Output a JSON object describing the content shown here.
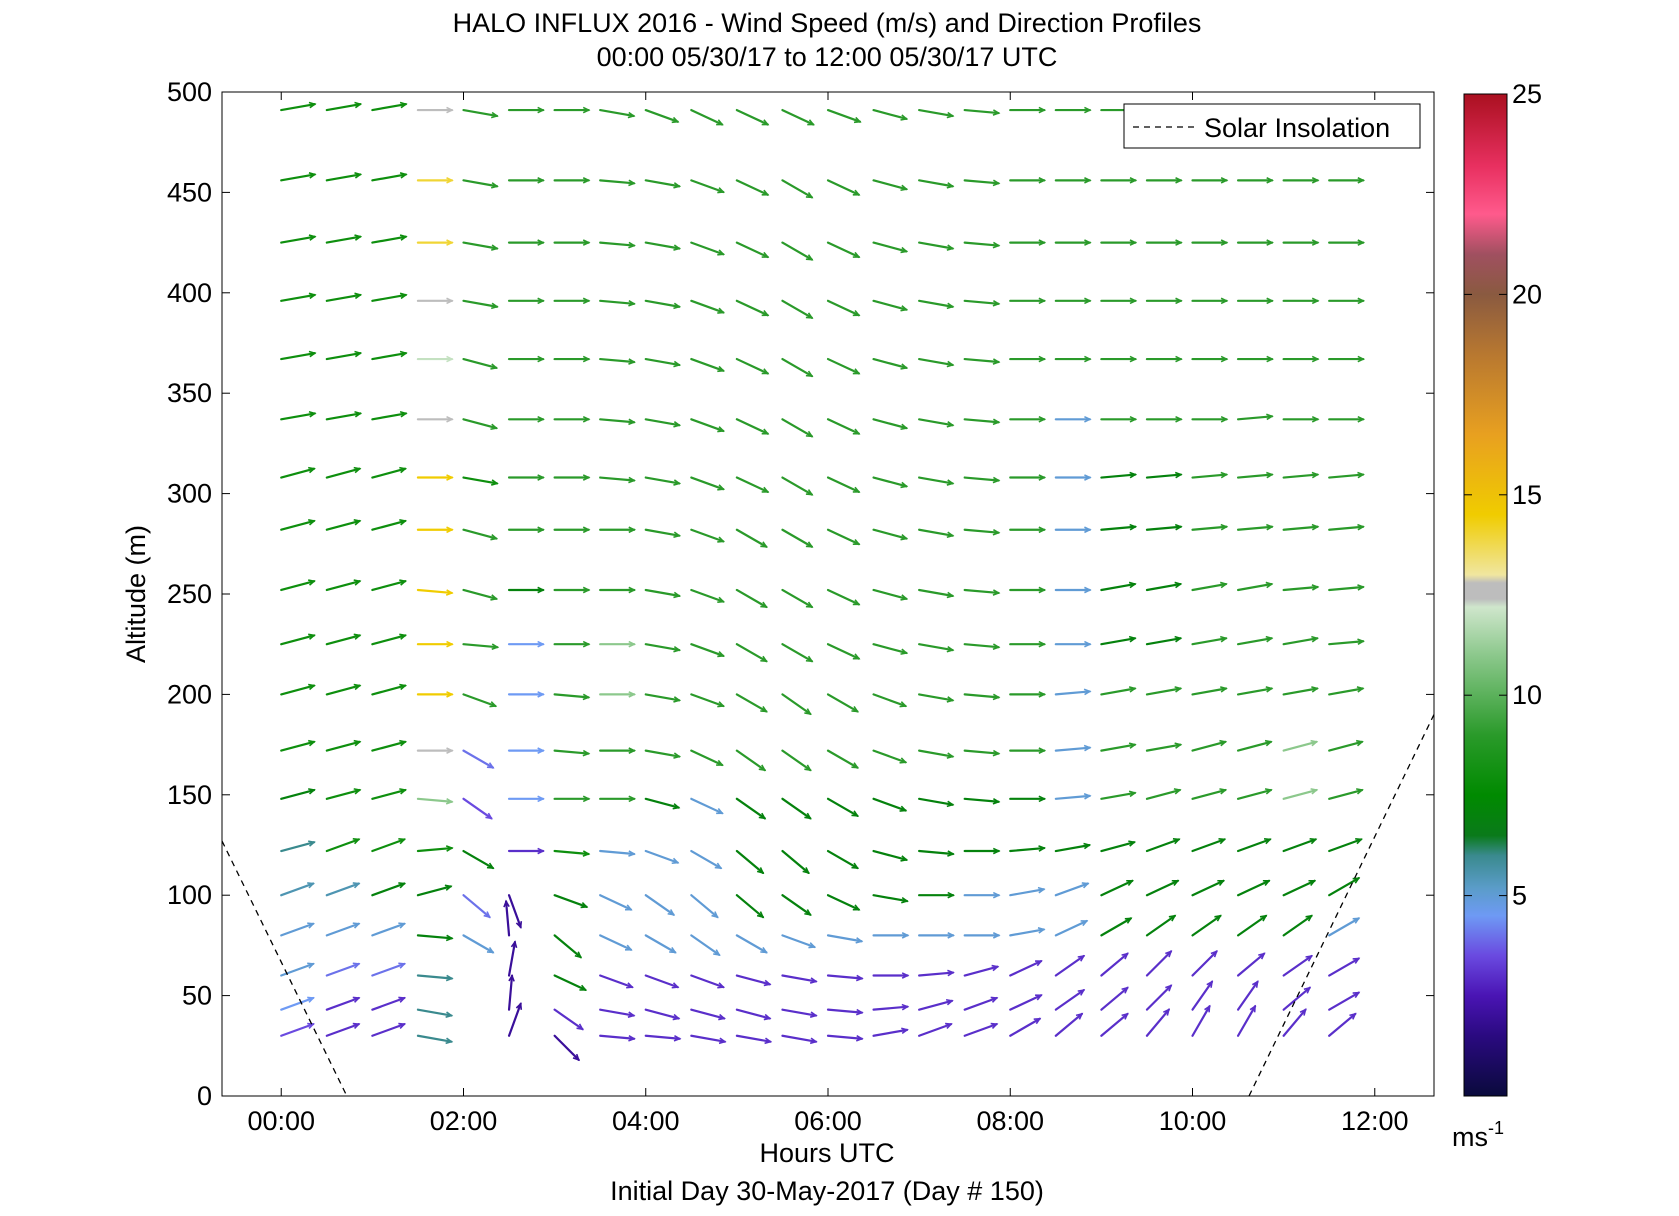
{
  "chart_data": {
    "type": "quiver",
    "title": "HALO INFLUX 2016 - Wind Speed (m/s) and Direction Profiles",
    "subtitle": "00:00 05/30/17 to 12:00 05/30/17  UTC",
    "xlabel": "Hours UTC",
    "footer": "Initial Day 30-May-2017 (Day # 150)",
    "ylabel": "Altitude (m)",
    "xlim": [
      -0.65,
      12.65
    ],
    "ylim": [
      0,
      500
    ],
    "x_ticks": [
      0,
      2,
      4,
      6,
      8,
      10,
      12
    ],
    "x_tick_labels": [
      "00:00",
      "02:00",
      "04:00",
      "06:00",
      "08:00",
      "10:00",
      "12:00"
    ],
    "y_ticks": [
      0,
      50,
      100,
      150,
      200,
      250,
      300,
      350,
      400,
      450,
      500
    ],
    "y_tick_labels": [
      "0",
      "50",
      "100",
      "150",
      "200",
      "250",
      "300",
      "350",
      "400",
      "450",
      "500"
    ],
    "grid": false,
    "legend": {
      "position": "top-right",
      "entries": [
        {
          "label": "Solar Insolation",
          "style": "dashed",
          "color": "#000000"
        }
      ]
    },
    "solar_insolation": {
      "morning": {
        "x": [
          -0.65,
          0.72
        ],
        "y": [
          127,
          0
        ]
      },
      "evening": {
        "x": [
          10.62,
          12.65
        ],
        "y": [
          0,
          190
        ]
      }
    },
    "colorbar": {
      "min": 0,
      "max": 25,
      "ticks": [
        5,
        10,
        15,
        20,
        25
      ],
      "tick_labels": [
        "5",
        "10",
        "15",
        "20",
        "25"
      ],
      "unit": "ms",
      "unit_exponent": "-1",
      "stops": [
        {
          "v": 0,
          "c": "#0a0a3c"
        },
        {
          "v": 1.5,
          "c": "#2a0a80"
        },
        {
          "v": 2.5,
          "c": "#4a14b4"
        },
        {
          "v": 3.5,
          "c": "#6a4ae0"
        },
        {
          "v": 4.5,
          "c": "#6e9af4"
        },
        {
          "v": 5.2,
          "c": "#5a9cc8"
        },
        {
          "v": 6.0,
          "c": "#3a8a8e"
        },
        {
          "v": 6.5,
          "c": "#0a7a1a"
        },
        {
          "v": 7.5,
          "c": "#008a00"
        },
        {
          "v": 9.0,
          "c": "#2a9a2a"
        },
        {
          "v": 11.0,
          "c": "#8cc88c"
        },
        {
          "v": 12.2,
          "c": "#cfe6cc"
        },
        {
          "v": 12.4,
          "c": "#bdbdbd"
        },
        {
          "v": 12.8,
          "c": "#bdbdbd"
        },
        {
          "v": 13.0,
          "c": "#f0e6a0"
        },
        {
          "v": 14.5,
          "c": "#f0cc00"
        },
        {
          "v": 16.5,
          "c": "#e8a020"
        },
        {
          "v": 18.5,
          "c": "#b87830"
        },
        {
          "v": 20.0,
          "c": "#8a5a40"
        },
        {
          "v": 21.0,
          "c": "#a05060"
        },
        {
          "v": 22.0,
          "c": "#ff5a8c"
        },
        {
          "v": 23.2,
          "c": "#e83060"
        },
        {
          "v": 25.0,
          "c": "#aa1020"
        }
      ]
    },
    "times": [
      0,
      0.5,
      1,
      1.5,
      2,
      2.5,
      3,
      3.5,
      4,
      4.5,
      5,
      5.5,
      6,
      6.5,
      7,
      7.5,
      8,
      8.5,
      9,
      9.5,
      10,
      10.5,
      11,
      11.5
    ],
    "altitudes": [
      30,
      43,
      60,
      80,
      100,
      122,
      148,
      172,
      200,
      225,
      252,
      282,
      308,
      337,
      367,
      396,
      425,
      456,
      491
    ],
    "speed": [
      [
        3.5,
        3,
        3,
        6,
        null,
        2,
        2,
        3,
        3,
        3,
        3,
        3,
        3,
        3,
        3,
        3,
        3,
        3,
        3,
        3,
        3,
        3,
        3,
        3
      ],
      [
        4.5,
        3,
        3,
        6,
        null,
        2,
        3,
        3,
        3,
        3,
        3,
        3,
        3,
        3,
        3,
        3,
        3,
        3,
        3,
        3,
        3,
        3,
        3,
        3
      ],
      [
        5,
        4,
        4,
        6,
        null,
        2,
        7,
        3,
        3,
        3,
        3,
        3,
        3,
        3,
        3,
        3,
        3,
        3,
        3,
        3,
        3,
        3,
        3,
        3
      ],
      [
        5,
        5,
        5,
        7,
        5,
        2,
        7,
        5,
        5,
        5,
        5,
        5,
        5,
        5,
        5,
        5,
        5,
        5,
        7,
        7,
        7,
        7,
        7,
        5
      ],
      [
        5.5,
        5.5,
        7,
        7,
        4,
        2,
        7,
        5,
        5,
        5,
        7,
        7,
        7,
        7,
        7,
        5,
        5,
        5,
        7,
        7,
        7,
        7,
        7,
        7
      ],
      [
        6,
        8,
        8,
        8,
        7,
        3,
        8,
        5,
        5,
        5,
        7,
        7,
        7,
        7,
        7,
        7,
        7,
        7,
        7,
        7,
        7,
        7,
        7,
        7
      ],
      [
        7,
        8,
        8,
        11,
        3.5,
        4.5,
        9,
        9,
        7,
        5,
        7,
        7,
        7,
        7,
        7,
        7,
        7,
        5,
        9,
        9,
        9,
        9,
        11,
        9
      ],
      [
        8,
        8,
        8,
        12.5,
        4,
        4.5,
        9,
        9,
        9,
        9,
        9,
        9,
        9,
        9,
        9,
        9,
        9,
        5,
        9,
        9,
        9,
        9,
        11,
        9
      ],
      [
        8,
        8,
        8,
        14.5,
        9,
        4.5,
        9,
        11,
        9,
        9,
        9,
        9,
        9,
        9,
        9,
        9,
        9,
        5,
        9,
        9,
        9,
        9,
        9,
        9
      ],
      [
        8,
        8,
        8,
        14.5,
        9,
        4.5,
        9,
        11,
        9,
        9,
        9,
        9,
        9,
        9,
        9,
        9,
        9,
        5,
        7,
        7,
        9,
        9,
        9,
        9
      ],
      [
        8,
        8,
        8,
        14.5,
        9,
        7,
        9,
        9,
        9,
        9,
        9,
        9,
        9,
        9,
        9,
        9,
        9,
        5,
        7,
        7,
        9,
        9,
        9,
        9
      ],
      [
        8,
        8,
        8,
        14.5,
        9,
        9,
        9,
        9,
        9,
        9,
        9,
        9,
        9,
        9,
        9,
        9,
        9,
        5,
        7,
        7,
        9,
        9,
        9,
        9
      ],
      [
        8,
        8,
        8,
        14.5,
        8,
        9,
        9,
        9,
        9,
        9,
        9,
        9,
        9,
        9,
        9,
        9,
        9,
        5,
        7,
        7,
        9,
        9,
        9,
        9
      ],
      [
        8,
        8,
        8,
        12.5,
        9,
        9,
        9,
        9,
        9,
        9,
        9,
        9,
        9,
        9,
        9,
        9,
        9,
        5,
        9,
        9,
        9,
        9,
        9,
        9
      ],
      [
        8,
        8,
        8,
        12,
        9,
        9,
        9,
        9,
        9,
        9,
        9,
        9,
        9,
        9,
        9,
        9,
        9,
        9,
        9,
        9,
        9,
        9,
        9,
        9
      ],
      [
        8,
        8,
        8,
        12.5,
        9,
        9,
        9,
        9,
        9,
        9,
        9,
        9,
        9,
        9,
        9,
        9,
        9,
        9,
        9,
        9,
        9,
        9,
        9,
        9
      ],
      [
        8,
        8,
        8,
        14,
        9,
        9,
        9,
        9,
        9,
        9,
        9,
        9,
        9,
        9,
        9,
        9,
        9,
        9,
        9,
        9,
        9,
        9,
        9,
        9
      ],
      [
        8,
        8,
        8,
        14,
        9,
        9,
        9,
        9,
        9,
        9,
        9,
        9,
        9,
        9,
        9,
        9,
        9,
        9,
        9,
        9,
        9,
        9,
        9,
        9
      ],
      [
        8,
        8,
        8,
        12.5,
        9,
        9,
        9,
        9,
        9,
        9,
        9,
        9,
        9,
        9,
        9,
        9,
        9,
        9,
        9,
        null,
        null,
        null,
        null,
        null
      ]
    ],
    "direction_to_deg": [
      [
        20,
        20,
        20,
        -10,
        null,
        70,
        -45,
        -5,
        -5,
        -10,
        -10,
        -10,
        -5,
        10,
        20,
        20,
        30,
        40,
        40,
        50,
        60,
        60,
        50,
        40
      ],
      [
        20,
        20,
        20,
        -10,
        null,
        85,
        -35,
        -10,
        -15,
        -15,
        -15,
        -10,
        -5,
        5,
        15,
        20,
        25,
        35,
        40,
        45,
        55,
        55,
        40,
        30
      ],
      [
        20,
        20,
        20,
        -5,
        null,
        80,
        -25,
        -20,
        -20,
        -20,
        -15,
        -10,
        -5,
        0,
        5,
        15,
        25,
        35,
        40,
        45,
        45,
        40,
        35,
        30
      ],
      [
        20,
        20,
        20,
        -5,
        -30,
        95,
        -40,
        -25,
        -30,
        -35,
        -30,
        -20,
        -10,
        0,
        0,
        0,
        10,
        25,
        30,
        35,
        35,
        35,
        35,
        30
      ],
      [
        20,
        20,
        20,
        15,
        -40,
        -70,
        -20,
        -25,
        -35,
        -40,
        -40,
        -35,
        -25,
        -10,
        0,
        0,
        10,
        20,
        25,
        25,
        25,
        25,
        25,
        30
      ],
      [
        15,
        20,
        20,
        5,
        -30,
        0,
        -5,
        -5,
        -20,
        -30,
        -40,
        -40,
        -30,
        -15,
        -5,
        0,
        5,
        10,
        15,
        20,
        20,
        20,
        20,
        20
      ],
      [
        15,
        15,
        15,
        -5,
        -35,
        0,
        0,
        0,
        -15,
        -25,
        -35,
        -35,
        -30,
        -20,
        -10,
        -5,
        0,
        5,
        10,
        15,
        15,
        15,
        15,
        15
      ],
      [
        15,
        15,
        15,
        0,
        -30,
        0,
        -5,
        0,
        -10,
        -25,
        -35,
        -35,
        -30,
        -20,
        -10,
        -5,
        0,
        5,
        10,
        10,
        15,
        15,
        15,
        15
      ],
      [
        15,
        15,
        15,
        0,
        -20,
        0,
        -5,
        0,
        -10,
        -20,
        -30,
        -35,
        -30,
        -20,
        -10,
        -5,
        0,
        5,
        10,
        10,
        10,
        10,
        10,
        10
      ],
      [
        15,
        15,
        15,
        0,
        -5,
        0,
        0,
        0,
        -10,
        -20,
        -30,
        -30,
        -25,
        -15,
        -10,
        -5,
        0,
        0,
        10,
        10,
        10,
        10,
        10,
        5
      ],
      [
        15,
        15,
        15,
        -5,
        -15,
        0,
        0,
        0,
        -10,
        -20,
        -30,
        -30,
        -25,
        -15,
        -10,
        -5,
        0,
        0,
        10,
        10,
        10,
        10,
        5,
        5
      ],
      [
        15,
        15,
        15,
        0,
        -15,
        0,
        0,
        0,
        -10,
        -20,
        -30,
        -30,
        -25,
        -15,
        -10,
        -5,
        0,
        0,
        5,
        5,
        5,
        5,
        5,
        5
      ],
      [
        15,
        15,
        15,
        0,
        -10,
        0,
        0,
        -5,
        -10,
        -20,
        -25,
        -30,
        -25,
        -15,
        -10,
        -5,
        0,
        0,
        5,
        5,
        5,
        5,
        5,
        5
      ],
      [
        10,
        10,
        10,
        0,
        -15,
        0,
        0,
        -5,
        -10,
        -20,
        -25,
        -30,
        -25,
        -15,
        -10,
        -5,
        0,
        0,
        0,
        0,
        0,
        5,
        0,
        0
      ],
      [
        10,
        10,
        10,
        0,
        -15,
        0,
        0,
        -5,
        -10,
        -20,
        -25,
        -30,
        -25,
        -15,
        -10,
        -5,
        0,
        0,
        0,
        0,
        0,
        0,
        0,
        0
      ],
      [
        10,
        10,
        10,
        0,
        -10,
        0,
        0,
        -5,
        -10,
        -20,
        -25,
        -30,
        -25,
        -15,
        -10,
        -5,
        0,
        0,
        0,
        0,
        0,
        0,
        0,
        0
      ],
      [
        10,
        10,
        10,
        0,
        -10,
        0,
        0,
        -5,
        -10,
        -20,
        -25,
        -30,
        -25,
        -15,
        -10,
        -5,
        0,
        0,
        0,
        0,
        0,
        0,
        0,
        0
      ],
      [
        10,
        10,
        10,
        0,
        -10,
        0,
        0,
        -5,
        -10,
        -20,
        -25,
        -30,
        -25,
        -15,
        -10,
        -5,
        0,
        0,
        0,
        0,
        0,
        0,
        0,
        0
      ],
      [
        10,
        10,
        10,
        0,
        -10,
        0,
        0,
        -10,
        -20,
        -25,
        -25,
        -25,
        -20,
        -15,
        -10,
        -5,
        0,
        0,
        0,
        null,
        null,
        null,
        null,
        null
      ]
    ]
  }
}
